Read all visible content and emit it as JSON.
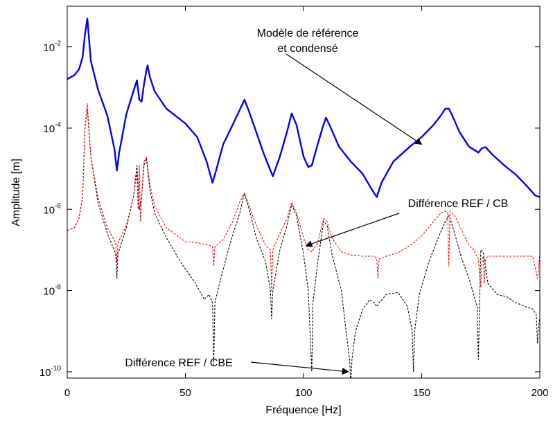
{
  "chart_data": {
    "type": "line",
    "title": "",
    "xlabel": "Fréquence [Hz]",
    "ylabel": "Amplitude [m]",
    "xlim": [
      0,
      200
    ],
    "ylim": [
      7e-11,
      0.1
    ],
    "yscale": "log",
    "grid": false,
    "x_ticks": [
      0,
      50,
      100,
      150,
      200
    ],
    "x_tick_labels": [
      "0",
      "50",
      "100",
      "150",
      "200"
    ],
    "y_ticks": [
      1e-10,
      1e-08,
      1e-06,
      0.0001,
      0.01
    ],
    "y_tick_labels": [
      {
        "base": "10",
        "exp": "-10"
      },
      {
        "base": "10",
        "exp": "-8"
      },
      {
        "base": "10",
        "exp": "-6"
      },
      {
        "base": "10",
        "exp": "-4"
      },
      {
        "base": "10",
        "exp": "-2"
      }
    ],
    "series": [
      {
        "color": "#0000ff",
        "style": "solid",
        "x": [
          0,
          3,
          5,
          6.5,
          7.5,
          8.5,
          10,
          13,
          17,
          20,
          21,
          22,
          25,
          28,
          29.5,
          30.5,
          31.5,
          32.5,
          33.5,
          34,
          35,
          37,
          42,
          50,
          55,
          59,
          61.5,
          63,
          66,
          70,
          73,
          75,
          77,
          80,
          83,
          86,
          87,
          90,
          93,
          95,
          97,
          100,
          102,
          103.5,
          106,
          108,
          109.5,
          111,
          115,
          120,
          125,
          129,
          131,
          133,
          138,
          145,
          150,
          155,
          158,
          160,
          161.5,
          163,
          166,
          170,
          174,
          175.5,
          177,
          180,
          185,
          190,
          195,
          198,
          200
        ],
        "y": [
          0.0016,
          0.002,
          0.0028,
          0.0055,
          0.02,
          0.05,
          0.0045,
          0.0009,
          0.0002,
          3e-05,
          9e-06,
          2.5e-05,
          0.00022,
          0.0008,
          0.0015,
          0.0005,
          0.00045,
          0.0012,
          0.0026,
          0.0035,
          0.0018,
          0.0008,
          0.0003,
          0.00013,
          6e-05,
          1.5e-05,
          4.5e-06,
          9e-06,
          4e-05,
          0.00012,
          0.00028,
          0.0005,
          0.00025,
          8e-05,
          2.5e-05,
          9e-06,
          6.5e-06,
          2e-05,
          8e-05,
          0.00023,
          0.00012,
          2e-05,
          1.1e-05,
          1.2e-05,
          4e-05,
          0.0001,
          0.00018,
          0.00012,
          3.5e-05,
          1.5e-05,
          7.5e-06,
          3e-06,
          2e-06,
          4.5e-06,
          1.5e-05,
          3.5e-05,
          6e-05,
          0.00012,
          0.0002,
          0.0003,
          0.0003,
          0.0002,
          8e-05,
          3.5e-05,
          2.5e-05,
          3.2e-05,
          3.4e-05,
          2.2e-05,
          1.2e-05,
          7e-06,
          3.5e-06,
          2.2e-06,
          2e-06
        ]
      },
      {
        "color": "#ff0000",
        "style": "dashed",
        "x": [
          0,
          3,
          5,
          6.5,
          7.5,
          8.5,
          10,
          13,
          17,
          20.5,
          21,
          21.5,
          25,
          28,
          29.5,
          30,
          30.5,
          31,
          31.5,
          32.5,
          33.5,
          34,
          35,
          37,
          42,
          50,
          55,
          60,
          61.5,
          62,
          62.5,
          66,
          70,
          73,
          75,
          77,
          80,
          84,
          86,
          86.5,
          87,
          90,
          93,
          95,
          97,
          100,
          102,
          103.5,
          106,
          108.5,
          110,
          112,
          116,
          120,
          125,
          130,
          131,
          131.5,
          132,
          135,
          140,
          145,
          150,
          155,
          158,
          160,
          161,
          161.5,
          162,
          164,
          167,
          170,
          172,
          174,
          175,
          175.5,
          176,
          176.5,
          177,
          178,
          182,
          190,
          197,
          199,
          200
        ],
        "y": [
          3e-07,
          3.5e-07,
          6e-07,
          2e-06,
          0.0001,
          0.0004,
          2e-05,
          2e-06,
          3.5e-07,
          1.5e-07,
          5e-08,
          1.5e-07,
          4e-07,
          2e-06,
          8e-06,
          1e-06,
          1.2e-05,
          5e-07,
          2e-06,
          1.5e-05,
          2e-05,
          1.2e-05,
          4e-06,
          1.2e-06,
          3.5e-07,
          1.6e-07,
          1.5e-07,
          1.3e-07,
          1.2e-07,
          4e-08,
          1.2e-07,
          1.8e-07,
          5e-07,
          1.5e-06,
          2.5e-06,
          1.2e-06,
          4e-07,
          1.3e-07,
          1e-07,
          1e-08,
          1e-07,
          2.5e-07,
          6e-07,
          1.5e-06,
          8e-07,
          2e-07,
          1e-07,
          9e-08,
          1.5e-07,
          6e-07,
          5e-07,
          2e-07,
          9e-08,
          7.5e-08,
          7e-08,
          7e-08,
          6e-08,
          2e-08,
          6e-08,
          7e-08,
          8.5e-08,
          1.3e-07,
          2.2e-07,
          5e-07,
          8e-07,
          9e-07,
          8e-07,
          4e-08,
          9e-07,
          7e-07,
          3e-07,
          1.3e-07,
          1e-07,
          6e-08,
          1.2e-08,
          5e-08,
          7e-08,
          1.5e-08,
          6e-08,
          7e-08,
          7e-08,
          7e-08,
          7e-08,
          2e-08,
          8e-08
        ]
      },
      {
        "color": "#000000",
        "style": "dashed",
        "x": [
          0,
          3,
          5,
          6.5,
          7.5,
          8.5,
          10,
          13,
          17,
          20.5,
          21,
          21.5,
          25,
          28,
          29.5,
          30.5,
          31.5,
          32.5,
          33.5,
          34,
          35,
          37,
          42,
          48,
          54,
          58,
          60,
          61.5,
          62,
          62.5,
          65,
          69,
          73,
          75,
          77,
          80,
          84,
          86,
          86.5,
          87,
          90,
          93,
          95,
          97,
          100,
          102,
          103.5,
          104,
          106,
          108.5,
          110,
          112,
          116,
          118,
          119.5,
          120,
          120.5,
          122,
          125,
          128,
          130,
          131,
          132,
          135,
          140,
          144,
          146,
          146.5,
          147,
          149,
          153,
          157,
          160,
          161.5,
          162,
          164,
          167,
          170,
          172,
          173.5,
          174,
          174.5,
          175,
          176,
          178,
          182,
          186,
          190,
          194,
          197,
          198.5,
          199,
          199.5,
          200
        ],
        "y": [
          3e-07,
          3.5e-07,
          6e-07,
          2e-06,
          0.0001,
          0.0003,
          2e-05,
          1.5e-06,
          2.5e-07,
          8e-08,
          2e-08,
          8e-08,
          3.5e-07,
          2e-06,
          1.2e-05,
          1e-06,
          2e-06,
          1.2e-05,
          1.8e-05,
          1e-05,
          3e-06,
          8e-07,
          2e-07,
          5e-08,
          1.6e-08,
          6e-09,
          8e-09,
          5e-09,
          1.5e-10,
          5e-09,
          2e-08,
          1.5e-07,
          8e-07,
          2.5e-06,
          1e-06,
          2e-07,
          5e-08,
          1e-08,
          2e-09,
          1e-08,
          1e-07,
          4e-07,
          1.3e-06,
          7e-07,
          8e-08,
          1e-08,
          1e-10,
          5e-09,
          5e-08,
          5e-07,
          4e-07,
          8e-08,
          1e-08,
          1e-09,
          2e-10,
          5e-11,
          2e-10,
          1e-09,
          3.5e-09,
          6e-09,
          5e-09,
          4e-09,
          5e-09,
          8e-09,
          9e-09,
          4e-09,
          1e-09,
          1e-10,
          1e-09,
          8e-09,
          5e-08,
          2e-07,
          5e-07,
          7e-07,
          6e-07,
          2.5e-07,
          6e-08,
          2e-08,
          8e-09,
          4e-09,
          2e-10,
          4e-09,
          1e-07,
          9e-08,
          1.5e-08,
          8e-09,
          7e-09,
          5e-09,
          4e-09,
          3.5e-09,
          2.5e-09,
          5e-10,
          1.5e-09,
          2e-09
        ]
      }
    ],
    "annotations": [
      {
        "lines": [
          "Modèle de référence",
          "et condensé"
        ],
        "arrow_to": [
          150,
          3.98e-05
        ]
      },
      {
        "lines": [
          "Différence REF / CB"
        ],
        "arrow_to": [
          101,
          1.259e-07
        ]
      },
      {
        "lines": [
          "Différence REF / CBE"
        ],
        "arrow_to": [
          119,
          1e-10
        ]
      }
    ]
  }
}
